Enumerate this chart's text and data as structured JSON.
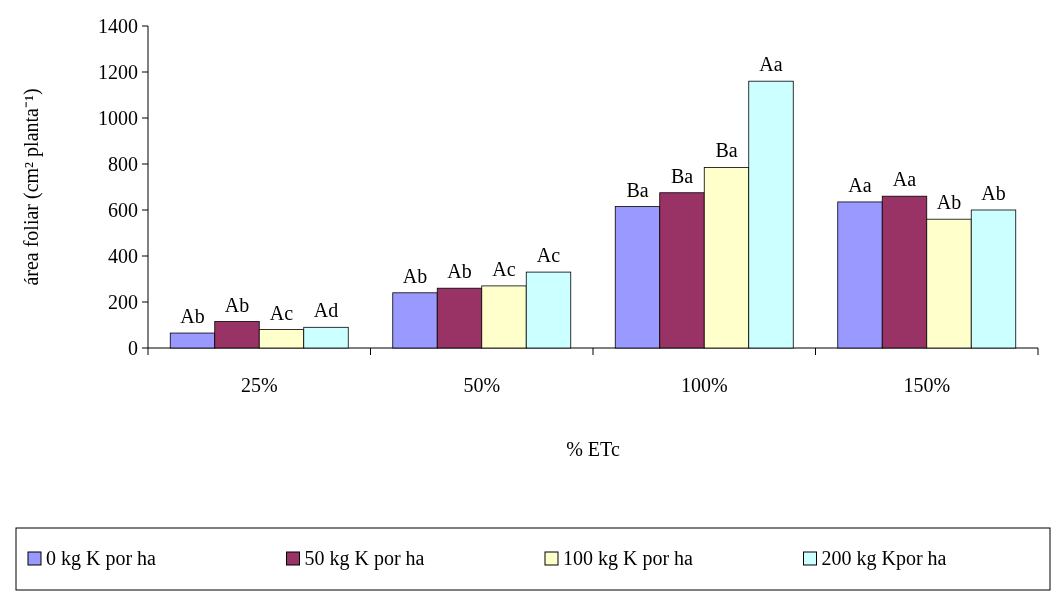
{
  "chart_data": {
    "type": "bar",
    "xlabel": "% ETc",
    "ylabel": "área foliar (cm² planta⁻¹)",
    "categories": [
      "25%",
      "50%",
      "100%",
      "150%"
    ],
    "series": [
      {
        "name": "0 kg K por ha",
        "color": "#9999ff",
        "values": [
          65,
          240,
          615,
          635
        ],
        "value_labels": [
          "Ab",
          "Ab",
          "Ba",
          "Aa"
        ]
      },
      {
        "name": "50 kg K por ha",
        "color": "#993366",
        "values": [
          115,
          260,
          675,
          660
        ],
        "value_labels": [
          "Ab",
          "Ab",
          "Ba",
          "Aa"
        ]
      },
      {
        "name": "100 kg K por ha",
        "color": "#ffffcc",
        "values": [
          80,
          270,
          785,
          560
        ],
        "value_labels": [
          "Ac",
          "Ac",
          "Ba",
          "Ab"
        ]
      },
      {
        "name": "200 kg Kpor ha",
        "color": "#ccffff",
        "values": [
          90,
          330,
          1160,
          600
        ],
        "value_labels": [
          "Ad",
          "Ac",
          "Aa",
          "Ab"
        ]
      }
    ],
    "ylim": [
      0,
      1400
    ],
    "yticks": [
      0,
      200,
      400,
      600,
      800,
      1000,
      1200,
      1400
    ],
    "grid": false,
    "legend": "bottom"
  }
}
